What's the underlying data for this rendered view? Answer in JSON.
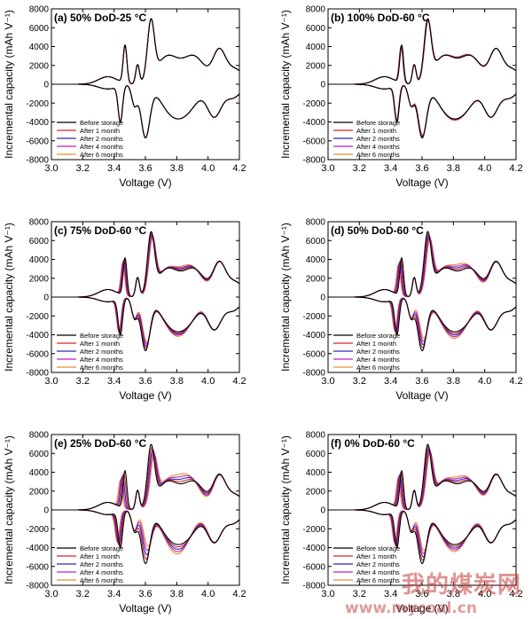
{
  "figure": {
    "watermark_cn": "我的煤炭网",
    "watermark_url": "www.mycoal.cn"
  },
  "colors": {
    "Before storage": "#000000",
    "After 1 month": "#d0272b",
    "After 2 months": "#2a2ab5",
    "After 4 months": "#c21fc1",
    "After 6 months": "#e8902b"
  },
  "chart_data": [
    {
      "type": "line",
      "panel_label": "(a) 50% DoD-25 °C",
      "xlabel": "Voltage (V)",
      "ylabel": "Incremental capacity (mAh V⁻¹)",
      "xlim": [
        3.0,
        4.2
      ],
      "ylim": [
        -8000,
        8000
      ],
      "xticks": [
        "3.0",
        "3.2",
        "3.4",
        "3.6",
        "3.8",
        "4.0",
        "4.2"
      ],
      "yticks": [
        "-8000",
        "-6000",
        "-4000",
        "-2000",
        "0",
        "2000",
        "4000",
        "6000",
        "8000"
      ],
      "legend_position": "lower-left",
      "series_names": [
        "Before storage",
        "After 1 month",
        "After 2 months",
        "After 4 months",
        "After 6 months"
      ],
      "aging_shift": 0.0
    },
    {
      "type": "line",
      "panel_label": "(b) 100% DoD-60 °C",
      "xlabel": "Voltage (V)",
      "ylabel": "Incremental capacity (mAh V⁻¹)",
      "xlim": [
        3.0,
        4.2
      ],
      "ylim": [
        -8000,
        8000
      ],
      "xticks": [
        "3.0",
        "3.2",
        "3.4",
        "3.6",
        "3.8",
        "4.0",
        "4.2"
      ],
      "yticks": [
        "-8000",
        "-6000",
        "-4000",
        "-2000",
        "0",
        "2000",
        "4000",
        "6000",
        "8000"
      ],
      "legend_position": "lower-left",
      "series_names": [
        "Before storage",
        "After 1 month",
        "After 2 months",
        "After 4 months",
        "After 6 months"
      ],
      "aging_shift": 0.15
    },
    {
      "type": "line",
      "panel_label": "(c) 75% DoD-60 °C",
      "xlabel": "Voltage (V)",
      "ylabel": "Incremental capacity (mAh V⁻¹)",
      "xlim": [
        3.0,
        4.2
      ],
      "ylim": [
        -8000,
        8000
      ],
      "xticks": [
        "3.0",
        "3.2",
        "3.4",
        "3.6",
        "3.8",
        "4.0",
        "4.2"
      ],
      "yticks": [
        "-8000",
        "-6000",
        "-4000",
        "-2000",
        "0",
        "2000",
        "4000",
        "6000",
        "8000"
      ],
      "legend_position": "lower-left",
      "series_names": [
        "Before storage",
        "After 1 month",
        "After 2 months",
        "After 4 months",
        "After 6 months"
      ],
      "aging_shift": 0.5
    },
    {
      "type": "line",
      "panel_label": "(d) 50% DoD-60 °C",
      "xlabel": "Voltage (V)",
      "ylabel": "Incremental capacity (mAh V⁻¹)",
      "xlim": [
        3.0,
        4.2
      ],
      "ylim": [
        -8000,
        8000
      ],
      "xticks": [
        "3.0",
        "3.2",
        "3.4",
        "3.6",
        "3.8",
        "4.0",
        "4.2"
      ],
      "yticks": [
        "-8000",
        "-6000",
        "-4000",
        "-2000",
        "0",
        "2000",
        "4000",
        "6000",
        "8000"
      ],
      "legend_position": "lower-left",
      "series_names": [
        "Before storage",
        "After 1 month",
        "After 2 months",
        "After 4 months",
        "After 6 months"
      ],
      "aging_shift": 0.7
    },
    {
      "type": "line",
      "panel_label": "(e) 25% DoD-60 °C",
      "xlabel": "Voltage (V)",
      "ylabel": "Incremental capacity (mAh V⁻¹)",
      "xlim": [
        3.0,
        4.2
      ],
      "ylim": [
        -8000,
        8000
      ],
      "xticks": [
        "3.0",
        "3.2",
        "3.4",
        "3.6",
        "3.8",
        "4.0",
        "4.2"
      ],
      "yticks": [
        "-8000",
        "-6000",
        "-4000",
        "-2000",
        "0",
        "2000",
        "4000",
        "6000",
        "8000"
      ],
      "legend_position": "lower-left",
      "series_names": [
        "Before storage",
        "After 1 month",
        "After 2 months",
        "After 4 months",
        "After 6 months"
      ],
      "aging_shift": 1.0
    },
    {
      "type": "line",
      "panel_label": "(f) 0% DoD-60 °C",
      "xlabel": "Voltage (V)",
      "ylabel": "Incremental capacity (mAh V⁻¹)",
      "xlim": [
        3.0,
        4.2
      ],
      "ylim": [
        -8000,
        8000
      ],
      "xticks": [
        "3.0",
        "3.2",
        "3.4",
        "3.6",
        "3.8",
        "4.0",
        "4.2"
      ],
      "yticks": [
        "-8000",
        "-6000",
        "-4000",
        "-2000",
        "0",
        "2000",
        "4000",
        "6000",
        "8000"
      ],
      "legend_position": "lower-left",
      "series_names": [
        "Before storage",
        "After 1 month",
        "After 2 months",
        "After 4 months",
        "After 6 months"
      ],
      "aging_shift": 0.75
    }
  ]
}
